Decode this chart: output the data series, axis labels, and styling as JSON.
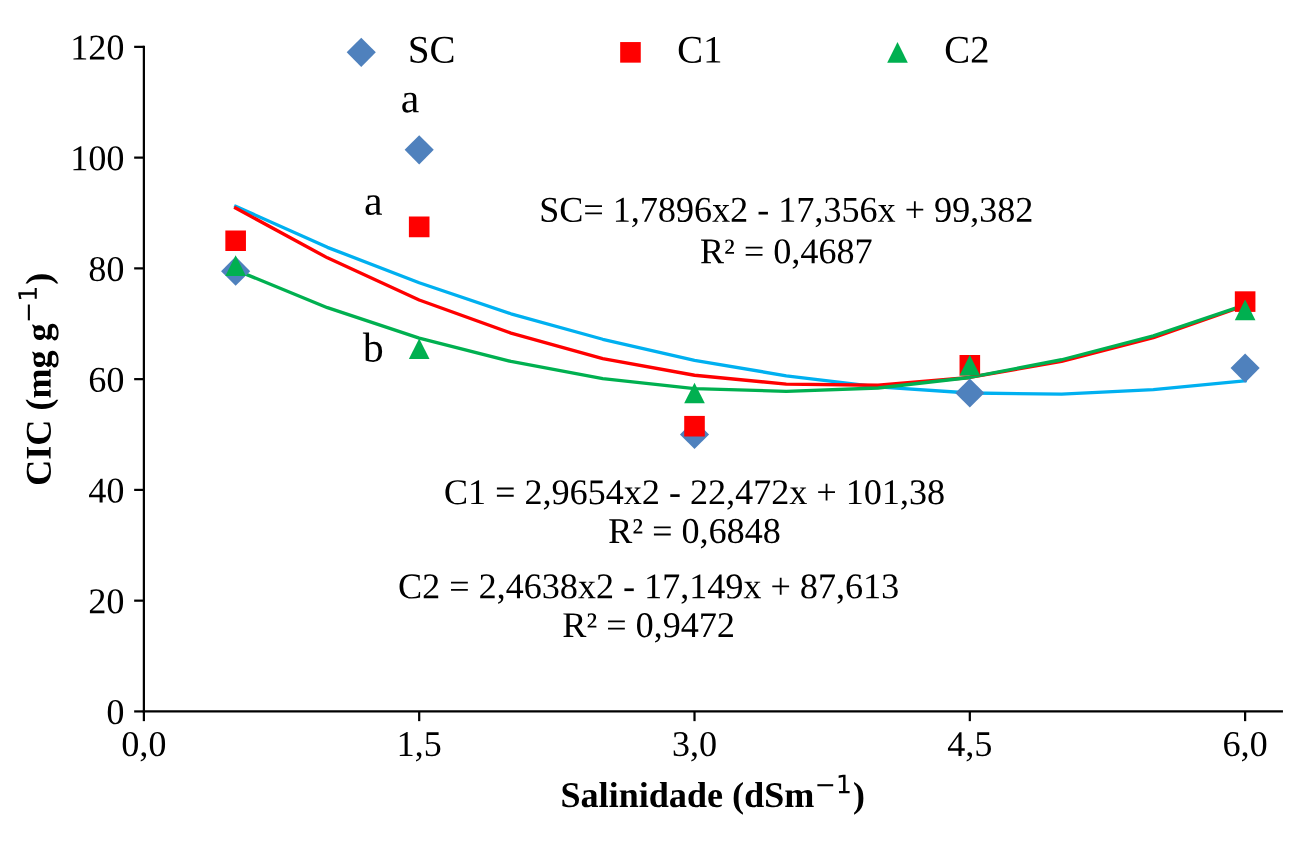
{
  "chart_data": {
    "type": "scatter",
    "xlabel": "Salinidade (dSm$^{−1}$)",
    "ylabel": "CIC (mg g$^{−1}$)",
    "xlim": [
      0,
      6.2
    ],
    "xticks": [
      {
        "value": 0,
        "label": "0,0"
      },
      {
        "value": 1.5,
        "label": "1,5"
      },
      {
        "value": 3,
        "label": "3,0"
      },
      {
        "value": 4.5,
        "label": "4,5"
      },
      {
        "value": 6,
        "label": "6,0"
      }
    ],
    "ylim": [
      0,
      120
    ],
    "yticks": [
      0,
      20,
      40,
      60,
      80,
      100,
      120
    ],
    "grid": false,
    "legend": "top",
    "series": [
      {
        "name": "SC",
        "marker": "diamond",
        "color": "#4f81bd",
        "x": [
          0.5,
          1.5,
          3,
          4.5,
          6
        ],
        "values": [
          79.5,
          101.4,
          50,
          57.5,
          62
        ]
      },
      {
        "name": "C1",
        "marker": "square",
        "color": "#ff0000",
        "x": [
          0.5,
          1.5,
          3,
          4.5,
          6
        ],
        "values": [
          85,
          87.5,
          51.5,
          62.5,
          74
        ]
      },
      {
        "name": "C2",
        "marker": "triangle",
        "color": "#00b050",
        "x": [
          0.5,
          1.5,
          3,
          4.5,
          6
        ],
        "values": [
          80.5,
          65.5,
          57.5,
          62.5,
          72.5
        ]
      },
      {
        "type": "line",
        "color": "#00b0f0",
        "x": [
          0.5,
          1,
          1.5,
          2,
          2.5,
          3,
          3.5,
          4,
          4.5,
          5,
          5.5,
          6
        ],
        "values": [
          91.2,
          83.8,
          77.4,
          71.8,
          67.2,
          63.4,
          60.6,
          58.6,
          57.5,
          57.3,
          58.1,
          59.7
        ]
      },
      {
        "type": "line",
        "color": "#ff0000",
        "x": [
          0.5,
          1,
          1.5,
          2,
          2.5,
          3,
          3.5,
          4,
          4.5,
          5,
          5.5,
          6
        ],
        "values": [
          90.9,
          81.9,
          74.3,
          68.3,
          63.7,
          60.7,
          59.1,
          58.9,
          60.3,
          63.2,
          67.5,
          73.3
        ]
      },
      {
        "type": "line",
        "color": "#00b050",
        "x": [
          0.5,
          1,
          1.5,
          2,
          2.5,
          3,
          3.5,
          4,
          4.5,
          5,
          5.5,
          6
        ],
        "values": [
          79.7,
          72.9,
          67.4,
          63.2,
          60.1,
          58.3,
          57.8,
          58.4,
          60.3,
          63.5,
          67.8,
          73.4
        ]
      }
    ],
    "annotations": [
      "a",
      "a",
      "b",
      "SC= 1,7896x2 - 17,356x + 99,382",
      "R² = 0,4687",
      "C1 = 2,9654x2 - 22,472x + 101,38",
      "R² = 0,6848",
      "C2 = 2,4638x2 - 17,149x + 87,613",
      "R² = 0,9472"
    ]
  }
}
